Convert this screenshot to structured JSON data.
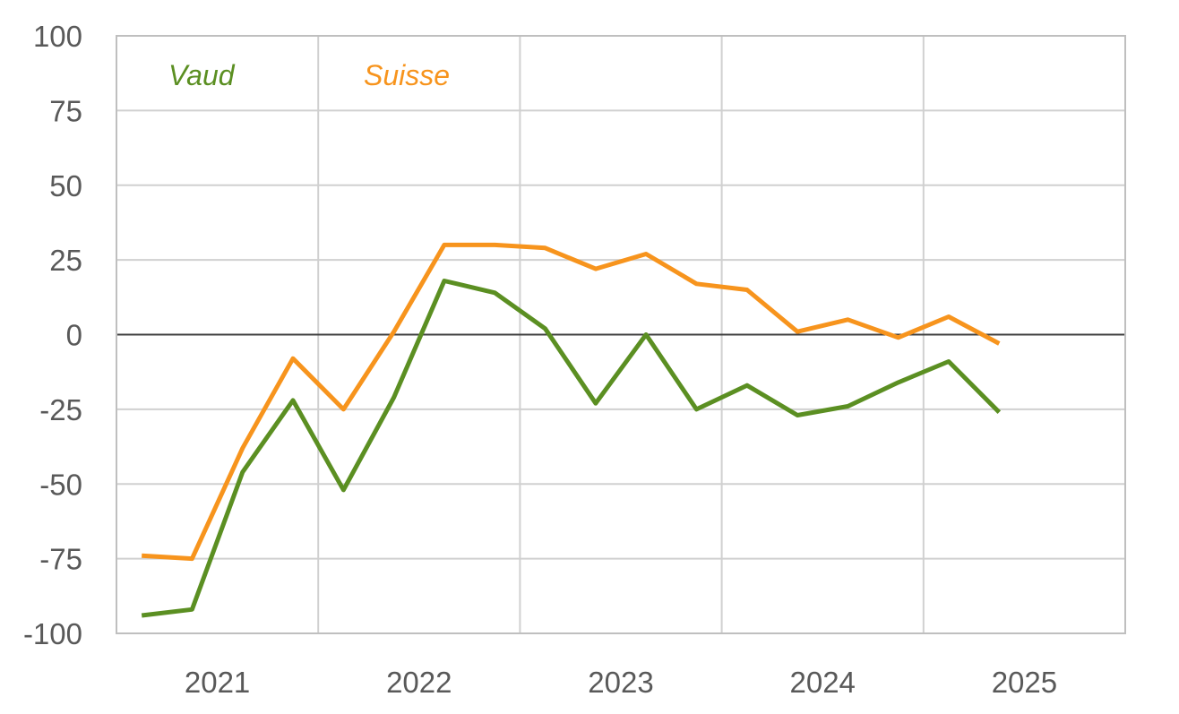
{
  "chart_data": {
    "type": "line",
    "title": "",
    "xlabel": "",
    "ylabel": "",
    "x_ticks": [
      "2021",
      "2022",
      "2023",
      "2024",
      "2025"
    ],
    "y_ticks": [
      "100",
      "75",
      "50",
      "25",
      "0",
      "-25",
      "-50",
      "-75",
      "-100"
    ],
    "ylim": [
      -100,
      100
    ],
    "xlim": [
      2021.0,
      2026.0
    ],
    "grid": true,
    "zero_line": true,
    "legend_position": "top-left",
    "x": [
      2021.125,
      2021.375,
      2021.625,
      2021.875,
      2022.125,
      2022.375,
      2022.625,
      2022.875,
      2023.125,
      2023.375,
      2023.625,
      2023.875,
      2024.125,
      2024.375,
      2024.625,
      2024.875,
      2025.125,
      2025.375
    ],
    "series": [
      {
        "name": "Vaud",
        "color": "#5b8f22",
        "values": [
          -94,
          -92,
          -46,
          -22,
          -52,
          -21,
          18,
          14,
          2,
          -23,
          0,
          -25,
          -17,
          -27,
          -24,
          -16,
          -9,
          -26
        ]
      },
      {
        "name": "Suisse",
        "color": "#f7941d",
        "values": [
          -74,
          -75,
          -38,
          -8,
          -25,
          1,
          30,
          30,
          29,
          22,
          27,
          17,
          15,
          1,
          5,
          -1,
          6,
          -3
        ]
      }
    ]
  }
}
